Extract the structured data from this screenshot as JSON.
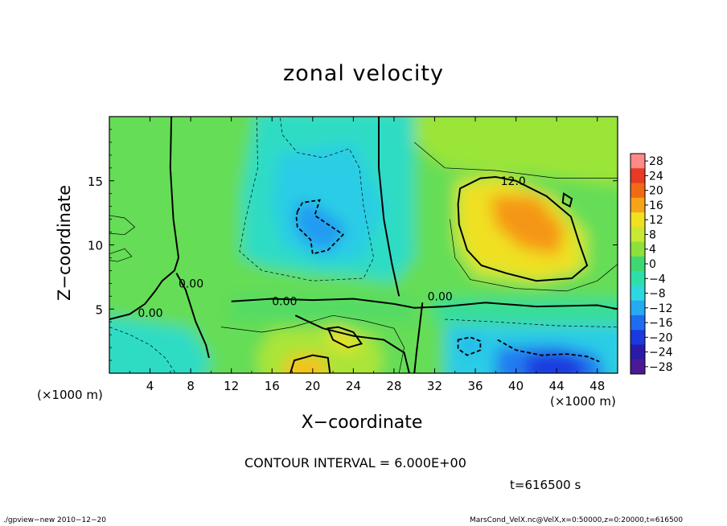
{
  "chart_data": {
    "type": "heatmap",
    "title": "zonal velocity",
    "xlabel": "X−coordinate",
    "ylabel": "Z−coordinate",
    "x_unit_left": "(×1000 m)",
    "x_unit_right": "(×1000 m)",
    "xlim": [
      0,
      50
    ],
    "ylim": [
      0,
      20
    ],
    "x_ticks": [
      "4",
      "8",
      "12",
      "16",
      "20",
      "24",
      "28",
      "32",
      "36",
      "40",
      "44",
      "48"
    ],
    "x_tick_values": [
      4,
      8,
      12,
      16,
      20,
      24,
      28,
      32,
      36,
      40,
      44,
      48
    ],
    "y_ticks": [
      "5",
      "10",
      "15"
    ],
    "y_tick_values": [
      5,
      10,
      15
    ],
    "colorbar": {
      "labels": [
        "28",
        "24",
        "20",
        "16",
        "12",
        "8",
        "4",
        "0",
        "−4",
        "−8",
        "−12",
        "−16",
        "−20",
        "−24",
        "−28"
      ],
      "values": [
        28,
        24,
        20,
        16,
        12,
        8,
        4,
        0,
        -4,
        -8,
        -12,
        -16,
        -20,
        -24,
        -28
      ],
      "min": -30,
      "max": 30
    },
    "contour_labels": [
      {
        "text": "12.0",
        "x": 38.5,
        "z": 15.0
      },
      {
        "text": "0.00",
        "x": 2.8,
        "z": 4.7
      },
      {
        "text": "0.00",
        "x": 6.8,
        "z": 7.0
      },
      {
        "text": "0.00",
        "x": 16.0,
        "z": 5.6
      },
      {
        "text": "0.00",
        "x": 31.3,
        "z": 6.0
      }
    ],
    "features": [
      {
        "x": 41,
        "z": 12,
        "value": 17
      },
      {
        "x": 20,
        "z": 11.5,
        "value": -12
      },
      {
        "x": 43,
        "z": 1,
        "value": -18
      },
      {
        "x": 19.5,
        "z": 0.6,
        "value": 14
      },
      {
        "x": 23,
        "z": 2.8,
        "value": 12
      },
      {
        "x": 35.5,
        "z": 2.2,
        "value": -10
      }
    ],
    "grid": false,
    "legend": "right"
  },
  "annotations": {
    "contour_interval": "CONTOUR INTERVAL = 6.000E+00",
    "time": "t=616500 s",
    "footer_left": "./gpview−new   2010−12−20",
    "footer_right": "MarsCond_VelX.nc@VelX,x=0:50000,z=0:20000,t=616500"
  }
}
